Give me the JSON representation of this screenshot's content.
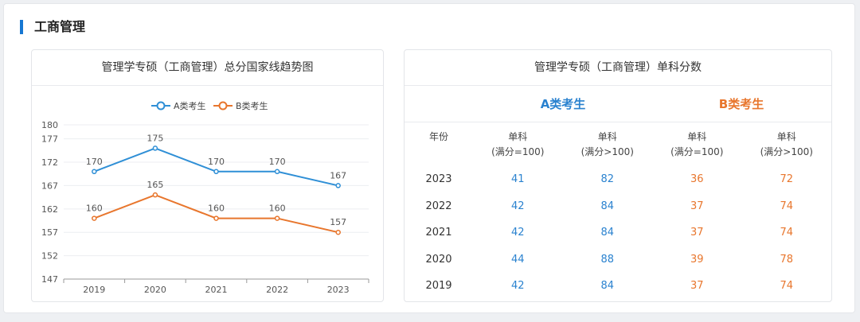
{
  "section": {
    "title": "工商管理"
  },
  "left_card": {
    "title": "管理学专硕（工商管理）总分国家线趋势图"
  },
  "right_card": {
    "title": "管理学专硕（工商管理）单科分数",
    "group_a": "A类考生",
    "group_b": "B类考生",
    "headers": [
      {
        "l1": "年份",
        "l2": ""
      },
      {
        "l1": "单科",
        "l2": "(满分=100)"
      },
      {
        "l1": "单科",
        "l2": "(满分>100)"
      },
      {
        "l1": "单科",
        "l2": "(满分=100)"
      },
      {
        "l1": "单科",
        "l2": "(满分>100)"
      }
    ],
    "rows": [
      [
        "2023",
        "41",
        "82",
        "36",
        "72"
      ],
      [
        "2022",
        "42",
        "84",
        "37",
        "74"
      ],
      [
        "2021",
        "42",
        "84",
        "37",
        "74"
      ],
      [
        "2020",
        "44",
        "88",
        "39",
        "78"
      ],
      [
        "2019",
        "42",
        "84",
        "37",
        "74"
      ]
    ]
  },
  "chart_data": {
    "type": "line",
    "title": "管理学专硕（工商管理）总分国家线趋势图",
    "categories": [
      "2019",
      "2020",
      "2021",
      "2022",
      "2023"
    ],
    "y_ticks": [
      147,
      152,
      157,
      162,
      167,
      172,
      177,
      180
    ],
    "ylim": [
      147,
      180
    ],
    "grid": true,
    "legend_position": "top-center",
    "series": [
      {
        "name": "A类考生",
        "values": [
          170,
          175,
          170,
          170,
          167
        ],
        "color": "#2f8fd6"
      },
      {
        "name": "B类考生",
        "values": [
          160,
          165,
          160,
          160,
          157
        ],
        "color": "#e8762d"
      }
    ]
  }
}
